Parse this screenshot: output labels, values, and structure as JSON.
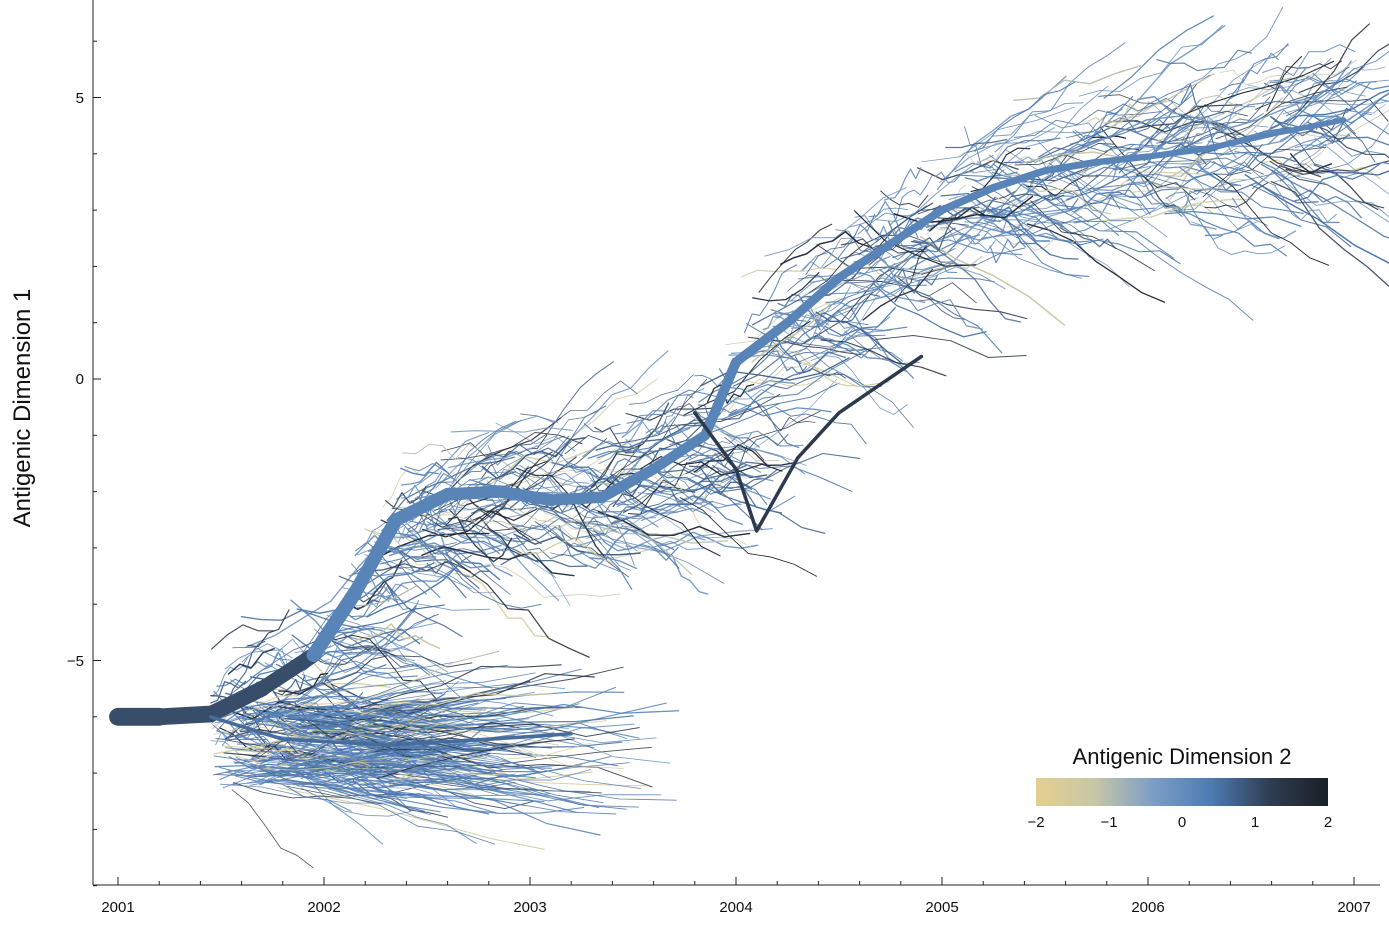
{
  "chart_data": {
    "type": "line",
    "title": "",
    "xlabel": "",
    "ylabel": "Antigenic Dimension 1",
    "xlim": [
      2000.9,
      2007.1
    ],
    "ylim": [
      -9.0,
      6.7
    ],
    "x_ticks": [
      "2001",
      "2002",
      "2003",
      "2004",
      "2005",
      "2006",
      "2007"
    ],
    "y_ticks": [
      "5",
      "0",
      "−5"
    ],
    "grid": false,
    "color_legend": {
      "title": "Antigenic Dimension 2",
      "range": [
        -2,
        2
      ],
      "ticks": [
        "−2",
        "−1",
        "0",
        "1",
        "2"
      ],
      "placement": "bottom-right",
      "colors": [
        "#e5cf8f",
        "#c6c7a6",
        "#7d9ec6",
        "#4d7bb3",
        "#2f3d52",
        "#1b1f26"
      ]
    },
    "series": [
      {
        "kind": "trunk",
        "color_value": 0.3,
        "x": [
          2001.0,
          2001.2,
          2001.45,
          2001.7,
          2001.95,
          2002.15,
          2002.35,
          2002.6,
          2002.85,
          2003.1,
          2003.35,
          2003.6,
          2003.85,
          2004.0,
          2004.25,
          2004.5,
          2004.75,
          2005.0,
          2005.25,
          2005.5,
          2005.75,
          2006.0,
          2006.3,
          2006.6,
          2006.95
        ],
        "y": [
          -6.0,
          -6.0,
          -5.95,
          -5.5,
          -4.9,
          -3.8,
          -2.5,
          -2.05,
          -2.0,
          -2.15,
          -2.1,
          -1.6,
          -1.0,
          0.3,
          1.0,
          1.8,
          2.4,
          3.0,
          3.4,
          3.7,
          3.85,
          3.95,
          4.1,
          4.35,
          4.6
        ]
      },
      {
        "kind": "branch",
        "color_value": 1.3,
        "x": [
          2003.8,
          2004.0,
          2004.1,
          2004.3,
          2004.5,
          2004.7,
          2004.9
        ],
        "y": [
          -0.6,
          -1.6,
          -2.7,
          -1.4,
          -0.6,
          -0.1,
          0.4
        ]
      },
      {
        "kind": "branch",
        "color_value": 0.6,
        "x": [
          2001.45,
          2001.8,
          2002.3,
          2002.8,
          2003.2
        ],
        "y": [
          -6.0,
          -6.4,
          -6.5,
          -6.4,
          -6.3
        ]
      }
    ]
  }
}
